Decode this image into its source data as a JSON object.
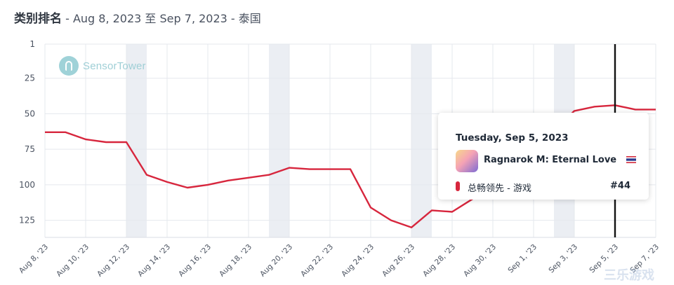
{
  "header": {
    "title": "类别排名",
    "subtitle": " - Aug 8, 2023 至 Sep 7, 2023 - 泰国"
  },
  "logo": {
    "text": "SensorTower"
  },
  "tooltip": {
    "date": "Tuesday, Sep 5, 2023",
    "app_name": "Ragnarok M: Eternal Love",
    "series_label": "总畅领先 - 游戏",
    "rank": "#44"
  },
  "watermark": "三乐游戏",
  "colors": {
    "line": "#d7263d",
    "weekend_band": "#ebeef3",
    "grid": "#e5e8ee",
    "cursor": "#111111",
    "flag_red": "#d2283c",
    "flag_blue": "#2b3b8f"
  },
  "chart_data": {
    "type": "line",
    "title": "类别排名",
    "y_reversed": true,
    "ylim": [
      1,
      137
    ],
    "y_ticks": [
      1,
      25,
      50,
      75,
      100,
      125
    ],
    "x_ticks": [
      "Aug 8, '23",
      "Aug 10, '23",
      "Aug 12, '23",
      "Aug 14, '23",
      "Aug 16, '23",
      "Aug 18, '23",
      "Aug 20, '23",
      "Aug 22, '23",
      "Aug 24, '23",
      "Aug 26, '23",
      "Aug 28, '23",
      "Aug 30, '23",
      "Sep 1, '23",
      "Sep 3, '23",
      "Sep 5, '23",
      "Sep 7, '23"
    ],
    "x": [
      "Aug 8",
      "Aug 9",
      "Aug 10",
      "Aug 11",
      "Aug 12",
      "Aug 13",
      "Aug 14",
      "Aug 15",
      "Aug 16",
      "Aug 17",
      "Aug 18",
      "Aug 19",
      "Aug 20",
      "Aug 21",
      "Aug 22",
      "Aug 23",
      "Aug 24",
      "Aug 25",
      "Aug 26",
      "Aug 27",
      "Aug 28",
      "Aug 29",
      "Aug 30",
      "Aug 31",
      "Sep 1",
      "Sep 2",
      "Sep 3",
      "Sep 4",
      "Sep 5",
      "Sep 6",
      "Sep 7"
    ],
    "series": [
      {
        "name": "Ragnarok M: Eternal Love",
        "values": [
          63,
          63,
          68,
          70,
          70,
          93,
          98,
          102,
          100,
          97,
          95,
          93,
          88,
          89,
          89,
          89,
          116,
          125,
          130,
          118,
          119,
          110,
          100,
          90,
          75,
          62,
          48,
          45,
          44,
          47,
          47
        ]
      }
    ],
    "weekend_ranges": [
      [
        4,
        5
      ],
      [
        11,
        12
      ],
      [
        18,
        19
      ],
      [
        25,
        26
      ]
    ],
    "highlight_index": 28,
    "grid": true
  }
}
